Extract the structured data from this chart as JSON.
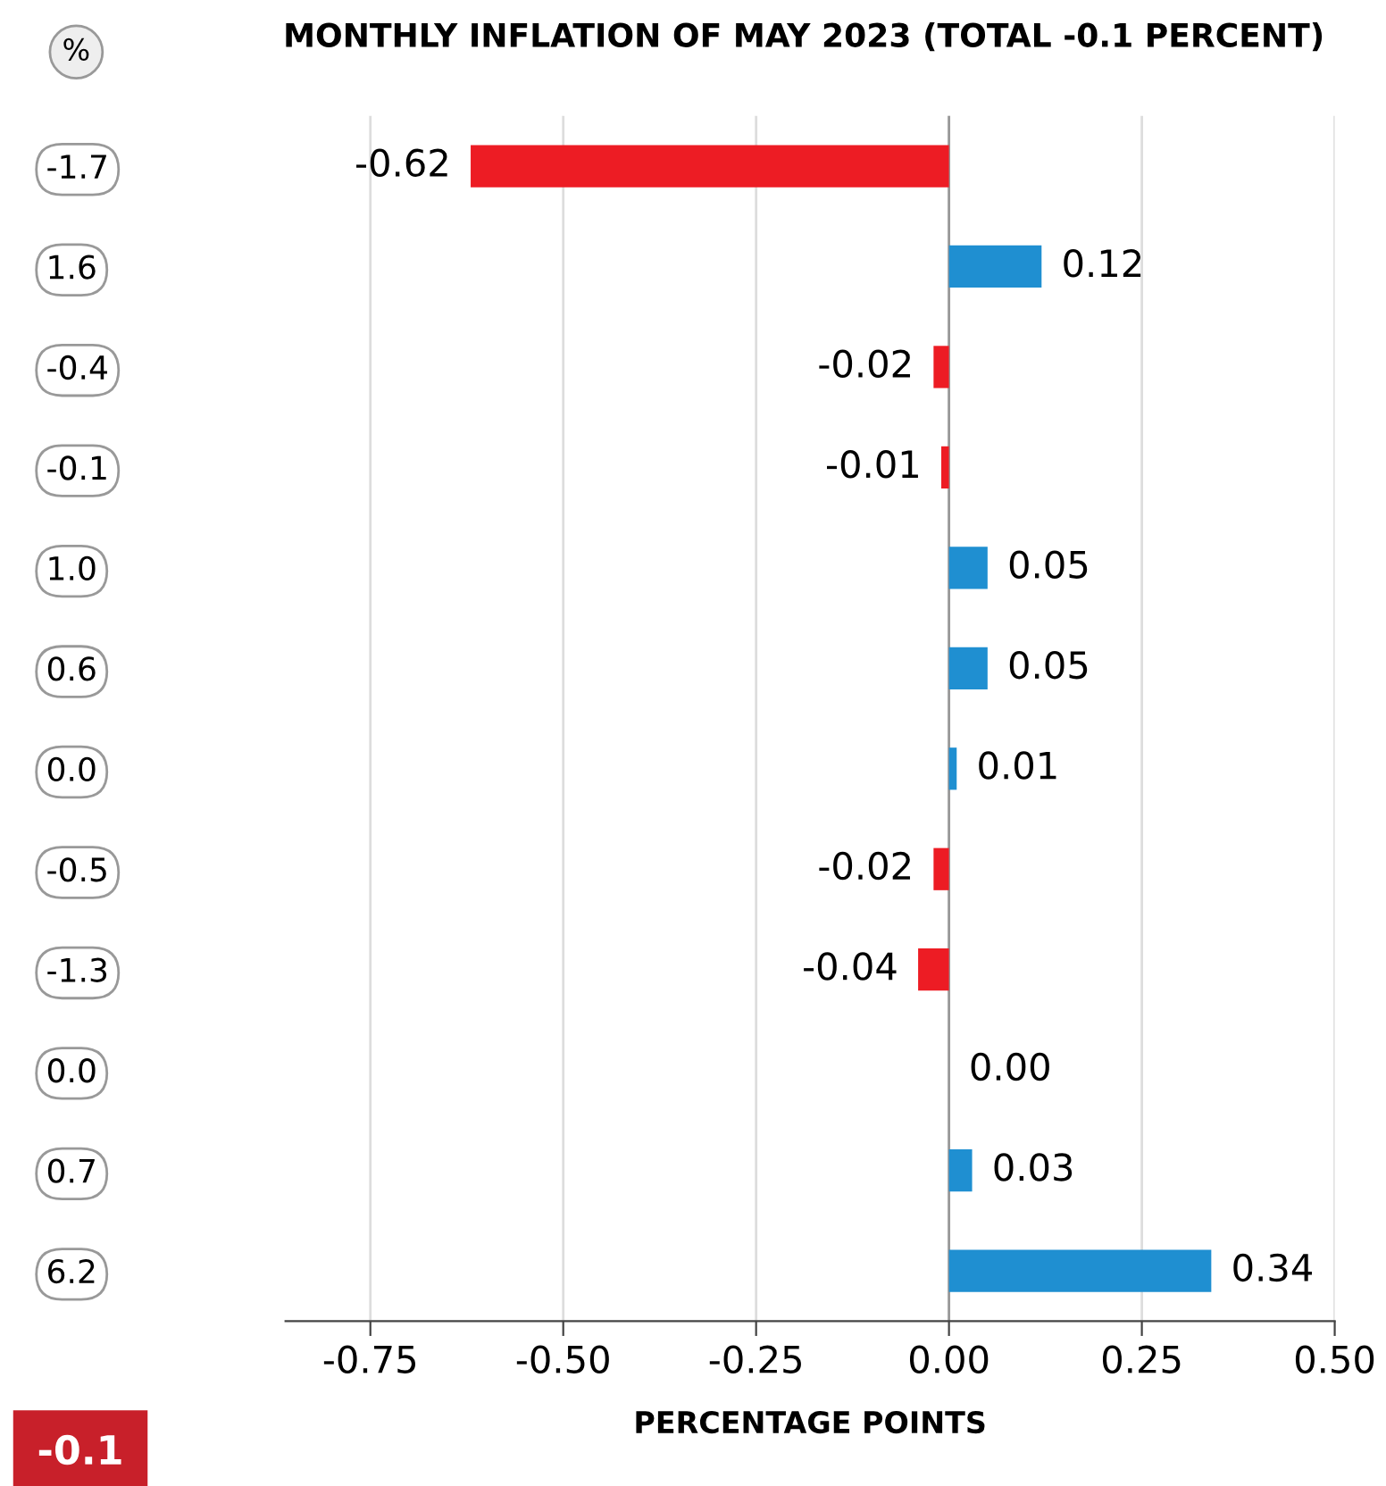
{
  "chart_data": {
    "type": "bar",
    "orientation": "horizontal",
    "title": "MONTHLY INFLATION OF MAY 2023 (TOTAL -0.1 PERCENT)",
    "xlabel": "PERCENTAGE POINTS",
    "ylabel": "%",
    "categories": [
      "-1.7",
      "1.6",
      "-0.4",
      "-0.1",
      "1.0",
      "0.6",
      "0.0",
      "-0.5",
      "-1.3",
      "0.0",
      "0.7",
      "6.2"
    ],
    "values": [
      -0.62,
      0.12,
      -0.02,
      -0.01,
      0.05,
      0.05,
      0.01,
      -0.02,
      -0.04,
      0.0,
      0.03,
      0.34
    ],
    "colors": [
      "#ed1c24",
      "#1f8fd1",
      "#ed1c24",
      "#ed1c24",
      "#1f8fd1",
      "#1f8fd1",
      "#1f8fd1",
      "#ed1c24",
      "#ed1c24",
      "#1f8fd1",
      "#1f8fd1",
      "#1f8fd1"
    ],
    "value_labels": [
      "-0.62",
      "0.12",
      "-0.02",
      "-0.01",
      "0.05",
      "0.05",
      "0.01",
      "-0.02",
      "-0.04",
      "0.00",
      "0.03",
      "0.34"
    ],
    "xlim": [
      -0.86,
      0.5
    ],
    "xticks": [
      {
        "value": -0.75,
        "label": "-0.75"
      },
      {
        "value": -0.5,
        "label": "-0.50"
      },
      {
        "value": -0.25,
        "label": "-0.25"
      },
      {
        "value": 0,
        "label": "0.00"
      },
      {
        "value": 0.25,
        "label": "0.25"
      },
      {
        "value": 0.5,
        "label": "0.50"
      }
    ],
    "grid": "x",
    "annotations": [
      "-0.1"
    ]
  }
}
